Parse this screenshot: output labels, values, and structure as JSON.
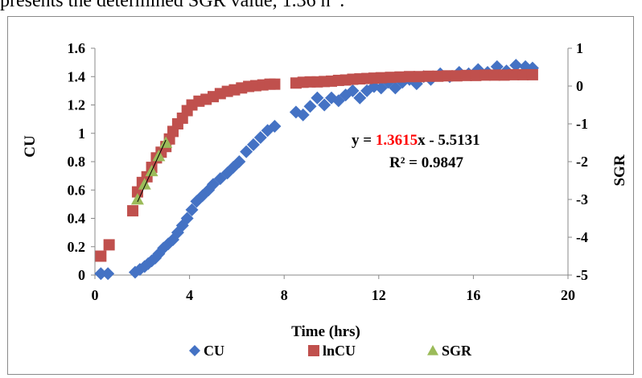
{
  "caption_fragment": "presents the determined SGR value, 1.36 h",
  "caption_superscript": "-1",
  "caption_tail": ".",
  "chart_data": {
    "type": "scatter",
    "title": "",
    "xlabel": "Time (hrs)",
    "ylabel": "CU",
    "y2label": "SGR",
    "xlim": [
      0,
      20
    ],
    "ylim": [
      0,
      1.6
    ],
    "y2lim": [
      -5,
      1
    ],
    "xticks": [
      "0",
      "4",
      "8",
      "12",
      "16",
      "20"
    ],
    "yticks": [
      "0",
      "0.2",
      "0.4",
      "0.6",
      "0.8",
      "1",
      "1.2",
      "1.4",
      "1.6"
    ],
    "y2ticks": [
      "-5",
      "-4",
      "-3",
      "-2",
      "-1",
      "0",
      "1"
    ],
    "grid": false,
    "legend_position": "bottom",
    "series": [
      {
        "name": "CU",
        "axis": "left",
        "marker": "diamond",
        "color": "#4472c4",
        "x": [
          0.25,
          0.55,
          1.7,
          1.9,
          2.1,
          2.25,
          2.4,
          2.55,
          2.7,
          2.9,
          3.1,
          3.3,
          3.5,
          3.7,
          3.9,
          4.1,
          4.3,
          4.55,
          4.8,
          5.0,
          5.3,
          5.6,
          5.85,
          6.1,
          6.4,
          6.7,
          7.0,
          7.3,
          7.6,
          8.5,
          8.8,
          9.1,
          9.4,
          9.7,
          10.0,
          10.3,
          10.6,
          10.9,
          11.2,
          11.5,
          11.8,
          12.1,
          12.4,
          12.7,
          13.0,
          13.3,
          13.6,
          13.9,
          14.2,
          14.6,
          15.0,
          15.4,
          15.8,
          16.2,
          16.6,
          17.0,
          17.4,
          17.8,
          18.2,
          18.5
        ],
        "y": [
          0.01,
          0.01,
          0.02,
          0.04,
          0.06,
          0.08,
          0.1,
          0.12,
          0.15,
          0.19,
          0.22,
          0.25,
          0.3,
          0.35,
          0.4,
          0.46,
          0.52,
          0.56,
          0.6,
          0.64,
          0.68,
          0.72,
          0.76,
          0.8,
          0.87,
          0.92,
          0.97,
          1.02,
          1.05,
          1.15,
          1.13,
          1.19,
          1.25,
          1.2,
          1.25,
          1.23,
          1.27,
          1.3,
          1.25,
          1.3,
          1.33,
          1.32,
          1.36,
          1.32,
          1.36,
          1.38,
          1.35,
          1.4,
          1.38,
          1.42,
          1.4,
          1.43,
          1.42,
          1.45,
          1.43,
          1.47,
          1.44,
          1.48,
          1.47,
          1.46
        ]
      },
      {
        "name": "lnCU",
        "axis": "right",
        "marker": "square",
        "color": "#c0504d",
        "x": [
          0.25,
          0.6,
          1.6,
          1.8,
          2.0,
          2.2,
          2.4,
          2.6,
          2.8,
          3.0,
          3.15,
          3.3,
          3.5,
          3.7,
          3.9,
          4.1,
          4.4,
          4.7,
          5.0,
          5.3,
          5.6,
          5.9,
          6.2,
          6.5,
          6.8,
          7.1,
          7.4,
          7.6,
          8.5,
          8.8,
          9.1,
          9.4,
          9.7,
          10.0,
          10.3,
          10.6,
          10.9,
          11.2,
          11.5,
          11.8,
          12.1,
          12.5,
          12.9,
          13.3,
          13.7,
          14.1,
          14.5,
          14.9,
          15.3,
          15.7,
          16.1,
          16.5,
          16.9,
          17.3,
          17.7,
          18.1,
          18.5
        ],
        "y": [
          -4.5,
          -4.2,
          -3.3,
          -2.8,
          -2.55,
          -2.4,
          -2.15,
          -1.9,
          -1.75,
          -1.6,
          -1.4,
          -1.2,
          -1.0,
          -0.85,
          -0.65,
          -0.5,
          -0.4,
          -0.35,
          -0.28,
          -0.2,
          -0.14,
          -0.1,
          -0.05,
          -0.01,
          0.01,
          0.03,
          0.05,
          0.05,
          0.08,
          0.1,
          0.11,
          0.11,
          0.12,
          0.13,
          0.15,
          0.16,
          0.18,
          0.19,
          0.2,
          0.21,
          0.22,
          0.23,
          0.24,
          0.25,
          0.25,
          0.26,
          0.26,
          0.27,
          0.27,
          0.28,
          0.28,
          0.29,
          0.29,
          0.29,
          0.3,
          0.3,
          0.3
        ]
      },
      {
        "name": "SGR",
        "axis": "right",
        "marker": "triangle",
        "color": "#9bbb59",
        "x": [
          1.8,
          2.1,
          2.4,
          2.7,
          3.0
        ],
        "y": [
          -3.0,
          -2.6,
          -2.25,
          -1.85,
          -1.5
        ]
      }
    ],
    "trendline": {
      "series": "SGR",
      "slope": 1.3615,
      "intercept": -5.5131,
      "x_from": 1.8,
      "x_to": 3.0
    },
    "annotations": {
      "equation_prefix": "y = ",
      "equation_slope": "1.3615",
      "equation_suffix": "x - 5.5131",
      "r2": "R² = 0.9847"
    },
    "colors": {
      "slope_highlight": "#ff0000",
      "axis": "#888888"
    }
  }
}
